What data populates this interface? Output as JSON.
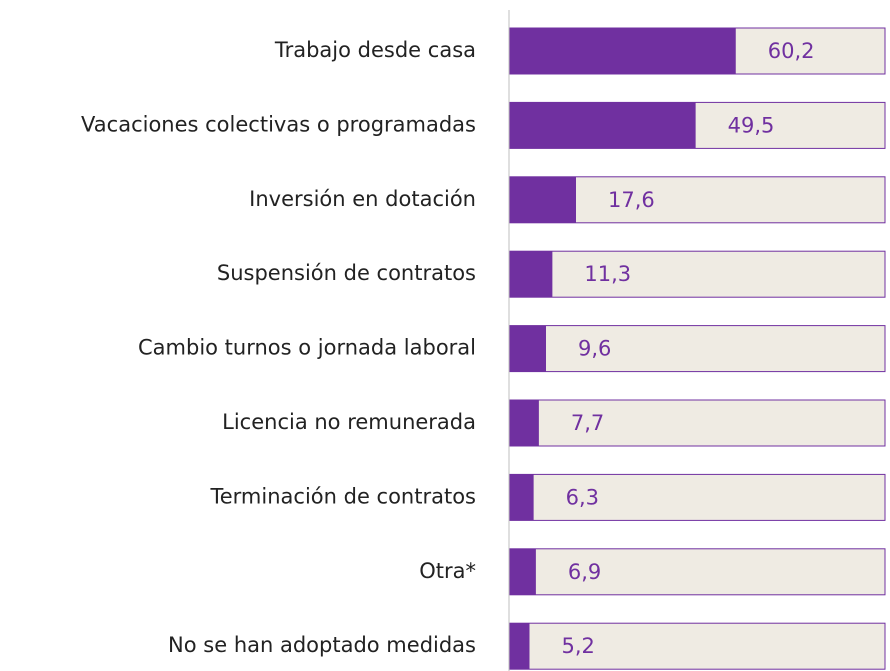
{
  "chart_data": {
    "type": "bar",
    "orientation": "horizontal",
    "categories": [
      "Trabajo desde casa",
      "Vacaciones colectivas o programadas",
      "Inversión en dotación",
      "Suspensión de contratos",
      "Cambio turnos o jornada laboral",
      "Licencia no remunerada",
      "Terminación de contratos",
      "Otra*",
      "No se han adoptado medidas"
    ],
    "values": [
      60.2,
      49.5,
      17.6,
      11.3,
      9.6,
      7.7,
      6.3,
      6.9,
      5.2
    ],
    "value_labels": [
      "60,2",
      "49,5",
      "17,6",
      "11,3",
      "9,6",
      "7,7",
      "6,3",
      "6,9",
      "5,2"
    ],
    "color": "#7030a0",
    "track_color": "#efebe3",
    "xlim": [
      0,
      100
    ]
  }
}
